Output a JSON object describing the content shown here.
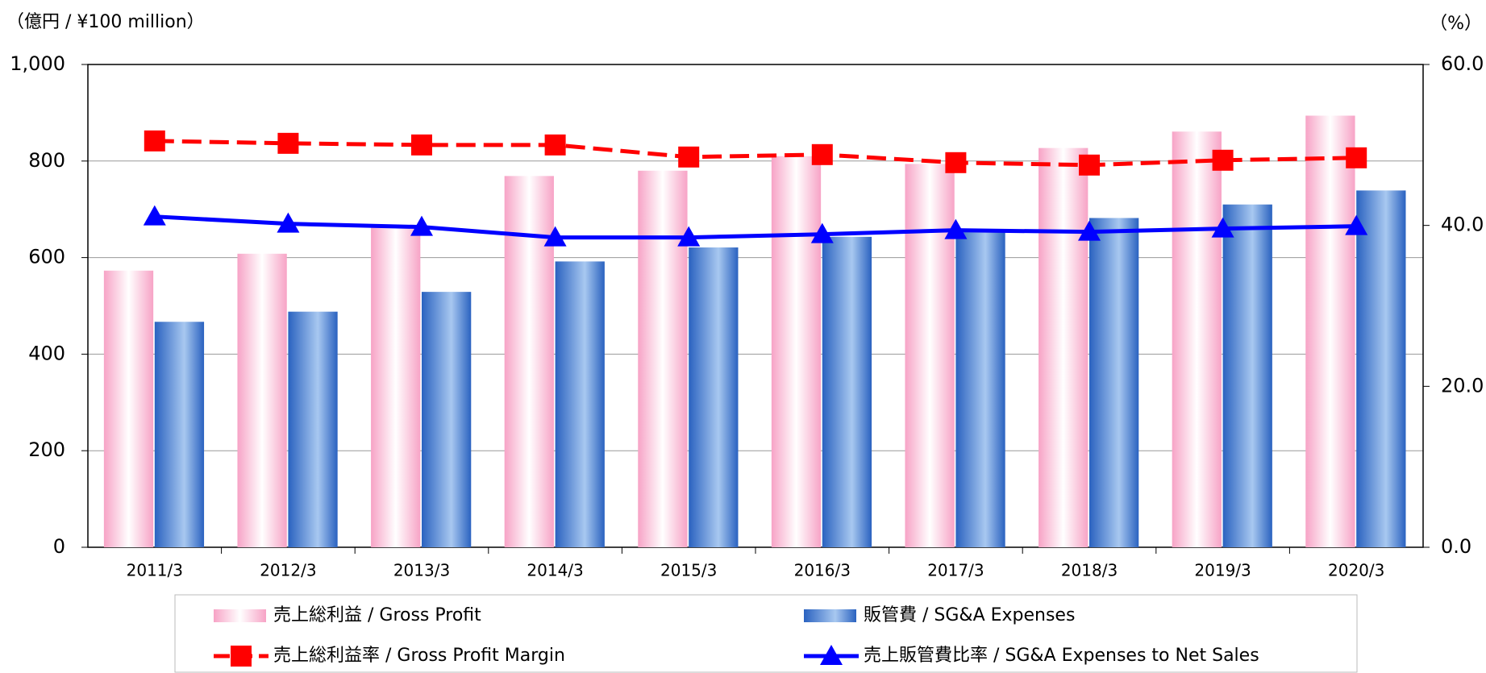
{
  "chart_data": {
    "type": "bar",
    "unit_left": "（億円 / ¥100 million）",
    "unit_right": "（%）",
    "categories": [
      "2011/3",
      "2012/3",
      "2013/3",
      "2014/3",
      "2015/3",
      "2016/3",
      "2017/3",
      "2018/3",
      "2019/3",
      "2020/3"
    ],
    "series": [
      {
        "name": "売上総利益 / Gross Profit",
        "type": "bar",
        "color": "#f7a3c6",
        "values": [
          573,
          608,
          665,
          769,
          780,
          810,
          794,
          827,
          861,
          894
        ]
      },
      {
        "name": "販管費 / SG&A Expenses",
        "type": "bar",
        "color": "#2a62c0",
        "values": [
          467,
          488,
          529,
          592,
          621,
          643,
          657,
          682,
          710,
          739
        ]
      },
      {
        "name": "売上総利益率 / Gross Profit Margin",
        "type": "line",
        "axis": "y2",
        "color": "#ff0000",
        "dashed": true,
        "marker": "square",
        "values": [
          50.5,
          50.2,
          50.0,
          50.0,
          48.5,
          48.8,
          47.8,
          47.5,
          48.1,
          48.4
        ]
      },
      {
        "name": "売上販管費比率 / SG&A Expenses to Net Sales",
        "type": "line",
        "axis": "y2",
        "color": "#0000ff",
        "marker": "triangle",
        "values": [
          41.1,
          40.2,
          39.8,
          38.5,
          38.5,
          38.9,
          39.4,
          39.2,
          39.6,
          39.9
        ]
      }
    ],
    "ylim": [
      0,
      1000
    ],
    "yticks": [
      0,
      200,
      400,
      600,
      800,
      {
        "value": 1000,
        "label": "1,000"
      }
    ],
    "y2lim": [
      0,
      60
    ],
    "y2ticks": [
      {
        "value": 0,
        "label": "0.0"
      },
      {
        "value": 20,
        "label": "20.0"
      },
      {
        "value": 40,
        "label": "40.0"
      },
      {
        "value": 60,
        "label": "60.0"
      }
    ],
    "grid": true
  }
}
